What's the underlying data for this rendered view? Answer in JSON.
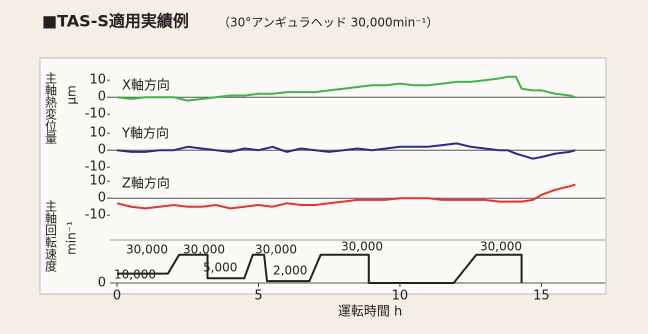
{
  "chart_data": {
    "type": "line",
    "title": "■TAS-S適用実績例",
    "subtitle": "（30°アンギュラヘッド 30,000min⁻¹）",
    "xlabel": "運転時間 h",
    "ylabel_displacement": "主軸熱変位量",
    "yunit_displacement": "µm",
    "ylabel_speed": "主軸回転速度",
    "yunit_speed": "min⁻¹",
    "xlim": [
      0,
      17
    ],
    "xticks": [
      0,
      5,
      10,
      15
    ],
    "panels": [
      {
        "name": "X軸方向",
        "color": "#3db54a",
        "ylim": [
          -14,
          16
        ],
        "yticks": [
          10,
          0,
          -10
        ],
        "x": [
          0,
          0.5,
          1,
          1.5,
          2,
          2.5,
          3,
          3.5,
          4,
          4.5,
          5,
          5.5,
          6,
          6.5,
          7,
          7.5,
          8,
          8.5,
          9,
          9.5,
          10,
          10.5,
          11,
          11.5,
          12,
          12.5,
          13,
          13.5,
          13.8,
          14.1,
          14.3,
          14.7,
          15,
          15.5,
          16,
          16.2
        ],
        "values": [
          0,
          -1,
          0,
          0,
          0,
          -2,
          -1,
          0,
          1,
          1,
          2,
          2,
          3,
          3,
          3,
          4,
          5,
          6,
          7,
          7,
          8,
          7,
          7,
          8,
          9,
          9,
          10,
          11,
          12,
          12,
          5,
          4,
          4,
          2,
          1,
          0
        ]
      },
      {
        "name": "Y軸方向",
        "color": "#2b2a86",
        "ylim": [
          -14,
          16
        ],
        "yticks": [
          10,
          0,
          -10
        ],
        "x": [
          0,
          0.5,
          1,
          1.5,
          2,
          2.5,
          3,
          3.5,
          4,
          4.5,
          5,
          5.5,
          6,
          6.5,
          7,
          7.5,
          8,
          8.5,
          9,
          9.5,
          10,
          10.5,
          11,
          11.5,
          12,
          12.5,
          13,
          13.5,
          13.8,
          14.1,
          14.3,
          14.7,
          15,
          15.5,
          16,
          16.2
        ],
        "values": [
          0,
          -1,
          -1,
          0,
          0,
          2,
          1,
          0,
          -1,
          1,
          0,
          2,
          -1,
          1,
          0,
          -1,
          0,
          1,
          0,
          1,
          2,
          2,
          2,
          3,
          4,
          2,
          1,
          0,
          0,
          -2,
          -3,
          -5,
          -4,
          -2,
          -1,
          0
        ]
      },
      {
        "name": "Z軸方向",
        "color": "#e8342b",
        "ylim": [
          -14,
          16
        ],
        "yticks": [
          10,
          0,
          -10
        ],
        "x": [
          0,
          0.5,
          1,
          1.5,
          2,
          2.5,
          3,
          3.5,
          4,
          4.5,
          5,
          5.5,
          6,
          6.5,
          7,
          7.5,
          8,
          8.5,
          9,
          9.5,
          10,
          10.5,
          11,
          11.5,
          12,
          12.5,
          13,
          13.5,
          13.8,
          14.1,
          14.3,
          14.7,
          15,
          15.5,
          16,
          16.2
        ],
        "values": [
          -3,
          -5,
          -6,
          -5,
          -4,
          -5,
          -5,
          -4,
          -6,
          -5,
          -4,
          -5,
          -3,
          -4,
          -4,
          -3,
          -2,
          -1,
          -1,
          -1,
          0,
          0,
          0,
          -1,
          -1,
          -1,
          -1,
          -2,
          -2,
          -2,
          -2,
          -1,
          2,
          5,
          7,
          8
        ]
      }
    ],
    "speed": {
      "color": "#222222",
      "ylim": [
        0,
        35000
      ],
      "yticks": [
        0
      ],
      "x": [
        0,
        1.8,
        2.2,
        3.2,
        3.2,
        4.5,
        4.8,
        5.2,
        5.3,
        6.8,
        7.2,
        8.9,
        8.9,
        11.9,
        12.7,
        14.3,
        14.3
      ],
      "values": [
        10000,
        10000,
        30000,
        30000,
        5000,
        5000,
        30000,
        30000,
        2000,
        2000,
        30000,
        30000,
        0,
        0,
        30000,
        30000,
        0
      ],
      "annotations": [
        "30,000",
        "30,000",
        "10,000",
        "5,000",
        "30,000",
        "2,000",
        "30,000",
        "30,000"
      ]
    }
  }
}
